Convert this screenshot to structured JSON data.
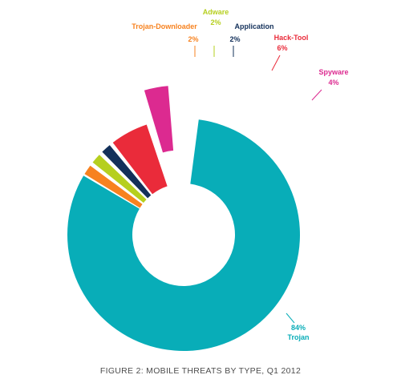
{
  "figure": {
    "caption": "FIGURE 2: MOBILE THREATS BY TYPE, Q1 2012"
  },
  "chart_data": {
    "type": "pie",
    "style": "exploded donut",
    "title": "FIGURE 2: MOBILE THREATS BY TYPE, Q1 2012",
    "unit": "%",
    "legend": "none",
    "slices": [
      {
        "key": "trojan",
        "label": "Trojan",
        "value": 84,
        "value_text": "84%",
        "color": "#08adb8"
      },
      {
        "key": "trojan_downloader",
        "label": "Trojan-Downloader",
        "value": 2,
        "value_text": "2%",
        "color": "#f7821f"
      },
      {
        "key": "adware",
        "label": "Adware",
        "value": 2,
        "value_text": "2%",
        "color": "#b6cf1f"
      },
      {
        "key": "application",
        "label": "Application",
        "value": 2,
        "value_text": "2%",
        "color": "#13305a"
      },
      {
        "key": "hack_tool",
        "label": "Hack-Tool",
        "value": 6,
        "value_text": "6%",
        "color": "#ea2b3a"
      },
      {
        "key": "spyware",
        "label": "Spyware",
        "value": 4,
        "value_text": "4%",
        "color": "#dc2a90"
      }
    ]
  }
}
